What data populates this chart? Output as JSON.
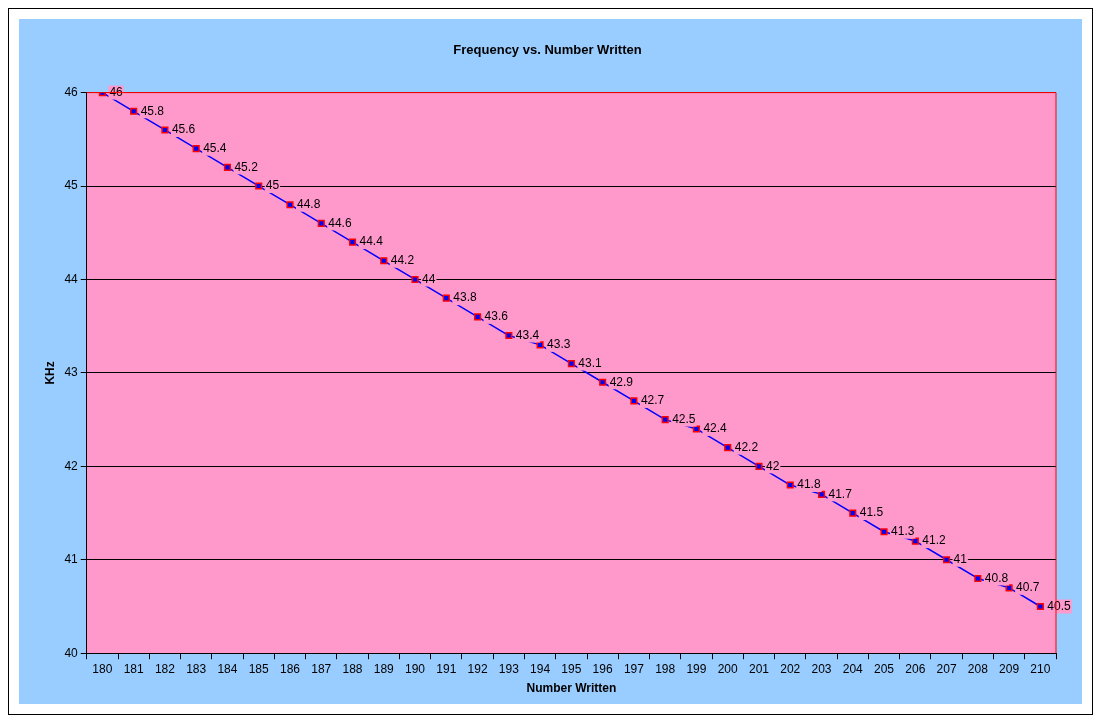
{
  "chart_data": {
    "type": "line",
    "title": "Frequency vs. Number Written",
    "xlabel": "Number Written",
    "ylabel": "KHz",
    "categories": [
      "180",
      "181",
      "182",
      "183",
      "184",
      "185",
      "186",
      "187",
      "188",
      "189",
      "190",
      "191",
      "192",
      "193",
      "194",
      "195",
      "196",
      "197",
      "198",
      "199",
      "200",
      "201",
      "202",
      "203",
      "204",
      "205",
      "206",
      "207",
      "208",
      "209",
      "210"
    ],
    "series": [
      {
        "color": "#0000ff",
        "values": [
          46,
          45.8,
          45.6,
          45.4,
          45.2,
          45,
          44.8,
          44.6,
          44.4,
          44.2,
          44,
          43.8,
          43.6,
          43.4,
          43.3,
          43.1,
          42.9,
          42.7,
          42.5,
          42.4,
          42.2,
          42,
          41.8,
          41.7,
          41.5,
          41.3,
          41.2,
          41,
          40.8,
          40.7,
          40.5
        ]
      }
    ],
    "ylim": [
      40,
      46
    ],
    "yticks": [
      40,
      41,
      42,
      43,
      44,
      45,
      46
    ],
    "grid": "y",
    "marker": "square",
    "line_style": "solid",
    "data_labels": true
  }
}
